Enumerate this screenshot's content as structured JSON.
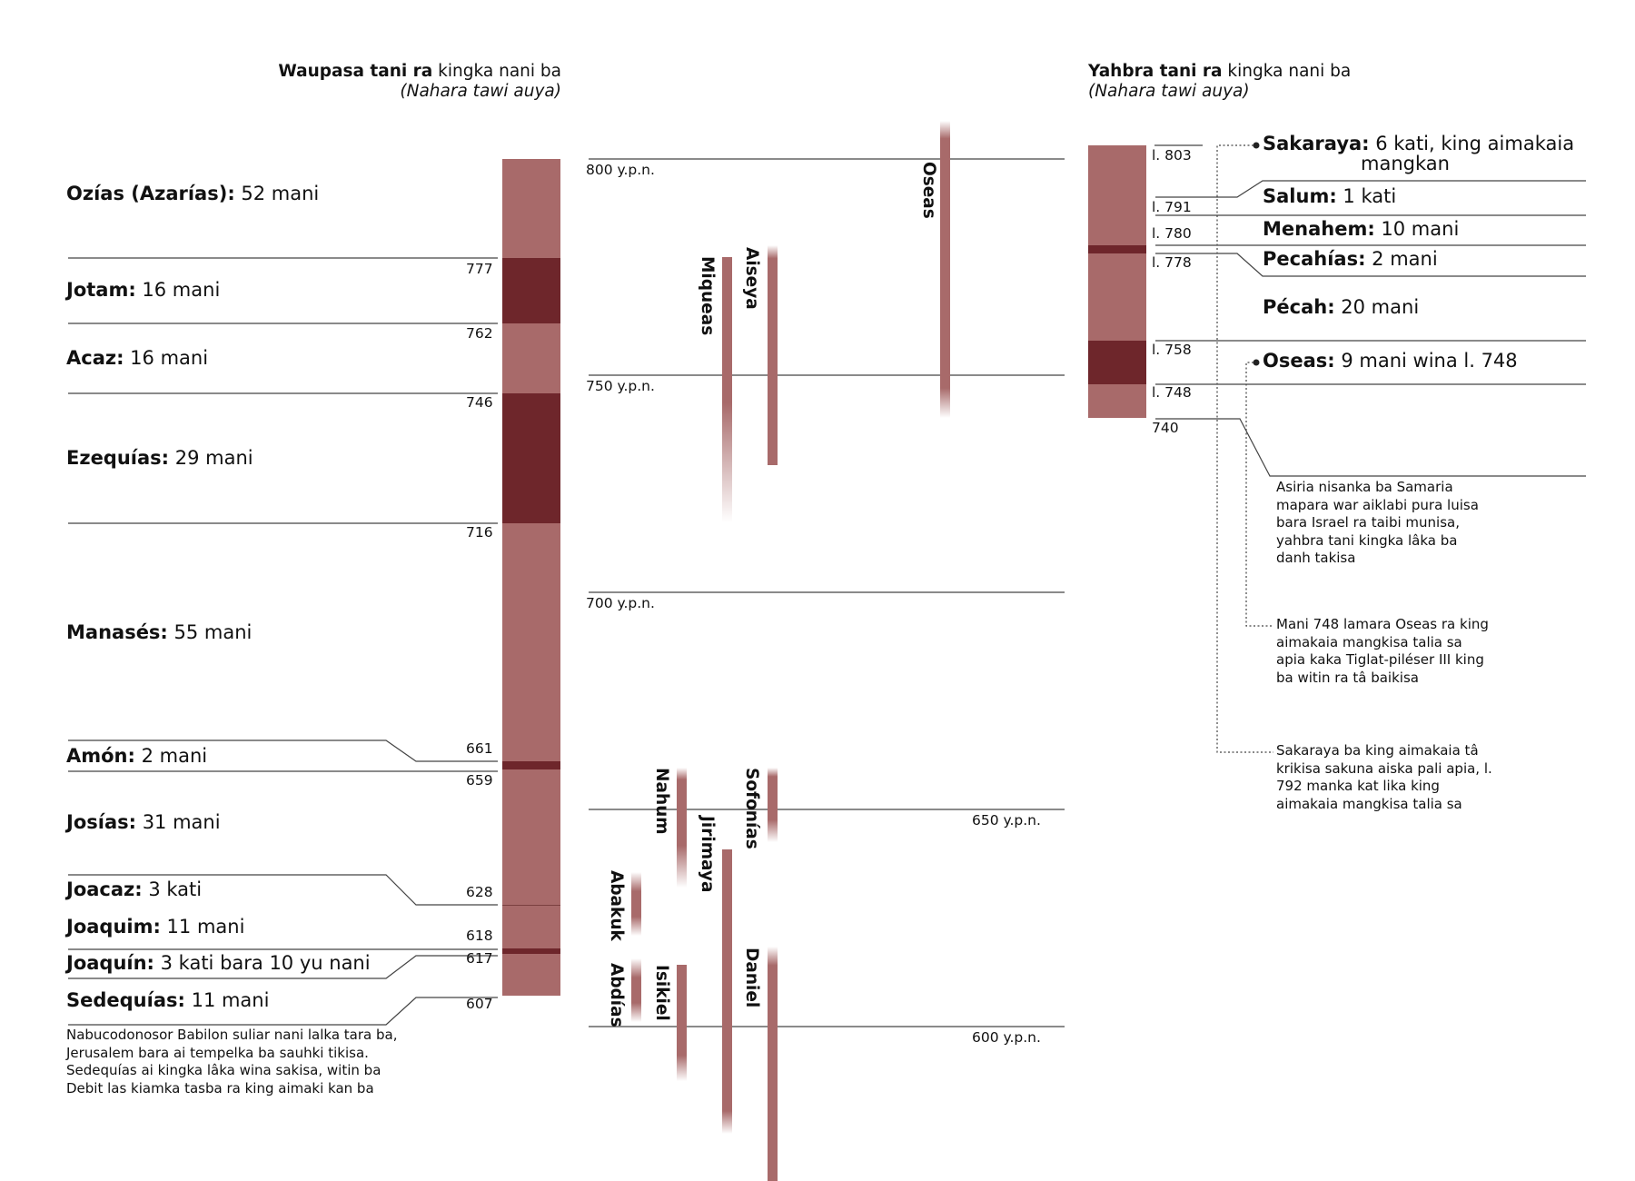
{
  "colors": {
    "light_bar": "#a86a6a",
    "dark_bar": "#6e262b",
    "line": "#333333"
  },
  "judah": {
    "title_bold": "Waupasa tani ra",
    "title_rest": " kingka nani ba",
    "subtitle": "(Nahara tawi auya)",
    "kings": [
      {
        "name": "Ozías (Azarías):",
        "reign": " 52 mani"
      },
      {
        "name": "Jotam:",
        "reign": " 16 mani"
      },
      {
        "name": "Acaz:",
        "reign": " 16 mani"
      },
      {
        "name": "Ezequías:",
        "reign": " 29 mani"
      },
      {
        "name": "Manasés:",
        "reign": " 55 mani"
      },
      {
        "name": "Amón:",
        "reign": " 2 mani"
      },
      {
        "name": "Josías:",
        "reign": " 31 mani"
      },
      {
        "name": "Joacaz:",
        "reign": " 3 kati"
      },
      {
        "name": "Joaquim:",
        "reign": " 11 mani"
      },
      {
        "name": "Joaquín:",
        "reign": " 3 kati bara 10 yu nani"
      },
      {
        "name": "Sedequías:",
        "reign": " 11 mani"
      }
    ],
    "years": [
      "777",
      "762",
      "746",
      "716",
      "661",
      "659",
      "628",
      "618",
      "617",
      "607"
    ],
    "note": "Nabucodonosor Babilon suliar nani lalka tara ba, Jerusalem bara ai tempelka ba sauhki tikisa. Sedequías ai kingka lâka wina sakisa, witin ba Debit las kiamka tasba ra king aimaki kan ba"
  },
  "timeline": {
    "eras": [
      "800 y.p.n.",
      "750 y.p.n.",
      "700 y.p.n.",
      "650 y.p.n.",
      "600 y.p.n."
    ],
    "prophets": [
      "Oseas",
      "Miqueas",
      "Aiseya",
      "Nahum",
      "Sofonías",
      "Jirimaya",
      "Abakuk",
      "Abdías",
      "Isikiel",
      "Daniel"
    ]
  },
  "israel": {
    "title_bold": "Yahbra tani ra",
    "title_rest": " kingka nani ba",
    "subtitle": "(Nahara tawi auya)",
    "years": [
      "l. 803",
      "l. 791",
      "l. 780",
      "l. 778",
      "l. 758",
      "l. 748",
      "740"
    ],
    "kings": [
      {
        "name": "Sakaraya:",
        "reign": " 6 kati, king aimakaia",
        "reign2": "mangkan"
      },
      {
        "name": "Salum:",
        "reign": " 1 kati"
      },
      {
        "name": "Menahem:",
        "reign": " 10 mani"
      },
      {
        "name": "Pecahías:",
        "reign": " 2 mani"
      },
      {
        "name": "Pécah:",
        "reign": " 20 mani"
      },
      {
        "name": "Oseas:",
        "reign": " 9 mani wina l. 748"
      }
    ],
    "notes": [
      "Asiria nisanka ba Samaria mapara war aiklabi pura luisa bara Israel ra taibi munisa, yahbra tani kingka lâka ba danh takisa",
      "Mani 748 lamara Oseas ra king aimakaia mangkisa talia sa apia kaka Tiglat-piléser III king ba witin ra tâ baikisa",
      "Sakaraya ba king aimakaia tâ krikisa sakuna aiska pali apia, l. 792 manka kat lika king aimakaia mangkisa talia sa"
    ]
  }
}
